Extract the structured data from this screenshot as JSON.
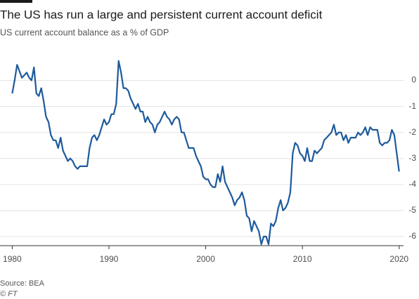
{
  "chart_data": {
    "type": "line",
    "title": "The US has run a large and persistent current account deficit",
    "subtitle": "US current account balance as a % of GDP",
    "source": "Source: BEA",
    "credit": "© FT",
    "color": "#1d5a9c",
    "grid": true,
    "x": [
      1980.0,
      1980.25,
      1980.5,
      1980.75,
      1981.0,
      1981.25,
      1981.5,
      1981.75,
      1982.0,
      1982.25,
      1982.5,
      1982.75,
      1983.0,
      1983.25,
      1983.5,
      1983.75,
      1984.0,
      1984.25,
      1984.5,
      1984.75,
      1985.0,
      1985.25,
      1985.5,
      1985.75,
      1986.0,
      1986.25,
      1986.5,
      1986.75,
      1987.0,
      1987.5,
      1987.75,
      1988.0,
      1988.25,
      1988.5,
      1988.75,
      1989.0,
      1989.25,
      1989.5,
      1989.75,
      1990.0,
      1990.25,
      1990.5,
      1990.75,
      1991.0,
      1991.25,
      1991.5,
      1991.75,
      1992.0,
      1992.25,
      1992.5,
      1992.75,
      1993.0,
      1993.25,
      1993.5,
      1993.75,
      1994.0,
      1994.25,
      1994.5,
      1994.75,
      1995.0,
      1995.25,
      1995.5,
      1995.75,
      1996.0,
      1996.25,
      1996.5,
      1996.75,
      1997.0,
      1997.25,
      1997.5,
      1997.75,
      1998.0,
      1998.25,
      1998.5,
      1998.75,
      1999.0,
      1999.25,
      1999.5,
      1999.75,
      2000.0,
      2000.25,
      2000.5,
      2000.75,
      2001.0,
      2001.25,
      2001.5,
      2001.75,
      2002.0,
      2002.25,
      2002.5,
      2002.75,
      2003.0,
      2003.25,
      2003.5,
      2003.75,
      2004.0,
      2004.25,
      2004.5,
      2004.75,
      2005.0,
      2005.25,
      2005.5,
      2005.75,
      2006.0,
      2006.25,
      2006.5,
      2006.75,
      2007.0,
      2007.25,
      2007.5,
      2007.75,
      2008.0,
      2008.25,
      2008.5,
      2008.75,
      2009.0,
      2009.25,
      2009.5,
      2009.75,
      2010.0,
      2010.25,
      2010.5,
      2010.75,
      2011.0,
      2011.25,
      2011.5,
      2011.75,
      2012.0,
      2012.25,
      2012.5,
      2012.75,
      2013.0,
      2013.25,
      2013.5,
      2013.75,
      2014.0,
      2014.25,
      2014.5,
      2014.75,
      2015.0,
      2015.25,
      2015.5,
      2015.75,
      2016.0,
      2016.25,
      2016.5,
      2016.75,
      2017.0,
      2017.25,
      2017.5,
      2017.75,
      2018.0,
      2018.25,
      2018.5,
      2018.75,
      2019.0,
      2019.25,
      2019.5,
      2020.0
    ],
    "values": [
      -0.5,
      0.0,
      0.6,
      0.35,
      0.1,
      0.2,
      0.3,
      0.1,
      0.0,
      0.5,
      -0.5,
      -0.6,
      -0.3,
      -0.8,
      -1.4,
      -1.6,
      -2.1,
      -2.3,
      -2.3,
      -2.6,
      -2.2,
      -2.7,
      -2.9,
      -3.1,
      -3.0,
      -3.1,
      -3.3,
      -3.4,
      -3.3,
      -3.3,
      -3.3,
      -2.6,
      -2.2,
      -2.1,
      -2.3,
      -2.1,
      -1.8,
      -1.5,
      -1.7,
      -1.6,
      -1.3,
      -1.3,
      -0.9,
      0.75,
      0.3,
      -0.3,
      -0.3,
      -0.4,
      -0.7,
      -0.9,
      -1.1,
      -0.9,
      -1.2,
      -1.2,
      -1.6,
      -1.4,
      -1.6,
      -1.7,
      -2.0,
      -1.7,
      -1.6,
      -1.4,
      -1.2,
      -1.4,
      -1.5,
      -1.7,
      -1.5,
      -1.4,
      -1.5,
      -2.0,
      -2.0,
      -2.3,
      -2.6,
      -2.6,
      -2.6,
      -2.9,
      -3.1,
      -3.3,
      -3.7,
      -3.8,
      -3.8,
      -4.0,
      -4.1,
      -4.1,
      -3.6,
      -3.9,
      -3.3,
      -3.9,
      -4.1,
      -4.3,
      -4.5,
      -4.8,
      -4.6,
      -4.5,
      -4.3,
      -4.6,
      -5.2,
      -5.3,
      -5.8,
      -5.4,
      -5.6,
      -5.8,
      -6.3,
      -6.0,
      -6.0,
      -6.3,
      -5.5,
      -5.6,
      -5.4,
      -4.9,
      -4.6,
      -5.0,
      -4.9,
      -4.7,
      -4.3,
      -2.8,
      -2.4,
      -2.5,
      -2.8,
      -2.9,
      -3.1,
      -2.6,
      -3.1,
      -3.1,
      -2.7,
      -2.8,
      -2.7,
      -2.6,
      -2.3,
      -2.2,
      -2.1,
      -2.0,
      -1.7,
      -2.1,
      -2.0,
      -2.0,
      -2.3,
      -2.1,
      -2.4,
      -2.2,
      -2.2,
      -2.2,
      -2.0,
      -2.1,
      -2.0,
      -1.8,
      -2.1,
      -1.8,
      -1.9,
      -1.9,
      -1.9,
      -2.4,
      -2.5,
      -2.4,
      -2.4,
      -2.3,
      -1.9,
      -2.1,
      -3.5
    ],
    "xlim": [
      1979.9,
      2020.6
    ],
    "xticks": [
      1980,
      1990,
      2000,
      2010,
      2020
    ],
    "ylim": [
      -6.35,
      0.85
    ],
    "yticks": [
      0,
      -1,
      -2,
      -3,
      -4,
      -5,
      -6
    ]
  }
}
